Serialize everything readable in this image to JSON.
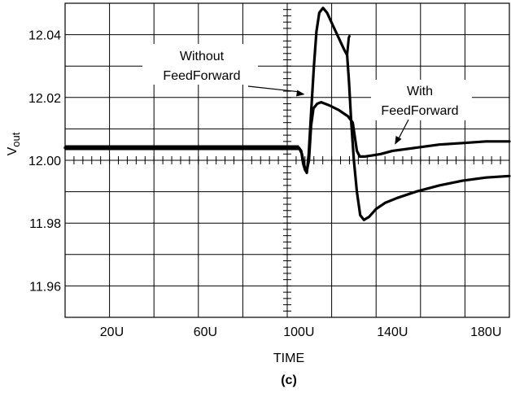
{
  "chart_data": {
    "type": "line",
    "xlabel": "TIME",
    "ylabel": "V",
    "ylabel_sub": "out",
    "caption": "(c)",
    "xlim": [
      0,
      190
    ],
    "ylim": [
      11.95,
      12.05
    ],
    "x_ticks": [
      {
        "value": 20,
        "label": "20U"
      },
      {
        "value": 60,
        "label": "60U"
      },
      {
        "value": 100,
        "label": "100U"
      },
      {
        "value": 140,
        "label": "140U"
      },
      {
        "value": 180,
        "label": "180U"
      }
    ],
    "y_ticks": [
      {
        "value": 11.96,
        "label": "11.96"
      },
      {
        "value": 11.98,
        "label": "11.98"
      },
      {
        "value": 12.0,
        "label": "12.00"
      },
      {
        "value": 12.02,
        "label": "12.02"
      },
      {
        "value": 12.04,
        "label": "12.04"
      }
    ],
    "grid": true,
    "color": "#000000",
    "series": [
      {
        "name": "Without FeedForward",
        "points": [
          [
            0,
            12.004
          ],
          [
            100,
            12.004
          ],
          [
            101,
            12.003
          ],
          [
            101.8,
            11.999
          ],
          [
            102.6,
            11.997
          ],
          [
            103.4,
            11.996
          ],
          [
            104.2,
            12.002
          ],
          [
            105.2,
            12.015
          ],
          [
            106.4,
            12.03
          ],
          [
            107.5,
            12.041
          ],
          [
            108.7,
            12.047
          ],
          [
            110.3,
            12.0485
          ],
          [
            112,
            12.047
          ],
          [
            114.5,
            12.043
          ],
          [
            117,
            12.039
          ],
          [
            119.5,
            12.035
          ],
          [
            120.6,
            12.0335
          ],
          [
            121.4,
            12.025
          ],
          [
            122.4,
            12.012
          ],
          [
            123.5,
            12.0
          ],
          [
            124.8,
            11.99
          ],
          [
            126.2,
            11.9825
          ],
          [
            127.8,
            11.981
          ],
          [
            130,
            11.982
          ],
          [
            133,
            11.9845
          ],
          [
            137,
            11.9865
          ],
          [
            142,
            11.988
          ],
          [
            150,
            11.99
          ],
          [
            160,
            11.992
          ],
          [
            170,
            11.9935
          ],
          [
            180,
            11.9945
          ],
          [
            190,
            11.995
          ]
        ]
      },
      {
        "name": "With FeedForward",
        "points": [
          [
            0,
            12.004
          ],
          [
            100,
            12.004
          ],
          [
            101.3,
            12.002
          ],
          [
            102.4,
            11.998
          ],
          [
            103.3,
            11.9965
          ],
          [
            104.3,
            12.0
          ],
          [
            105.2,
            12.011
          ],
          [
            106.2,
            12.0165
          ],
          [
            107.8,
            12.018
          ],
          [
            109.5,
            12.0185
          ],
          [
            113,
            12.0175
          ],
          [
            117,
            12.016
          ],
          [
            121,
            12.014
          ],
          [
            123,
            12.012
          ],
          [
            124.8,
            12.003
          ],
          [
            126,
            12.0012
          ],
          [
            128,
            12.0012
          ],
          [
            131,
            12.0015
          ],
          [
            135,
            12.002
          ],
          [
            140,
            12.003
          ],
          [
            150,
            12.004
          ],
          [
            160,
            12.005
          ],
          [
            170,
            12.0055
          ],
          [
            180,
            12.006
          ],
          [
            190,
            12.006
          ]
        ]
      },
      {
        "name": "Without FeedForward end spike",
        "points": [
          [
            120.6,
            12.0335
          ],
          [
            121.3,
            12.039
          ],
          [
            121.6,
            12.0395
          ]
        ]
      }
    ],
    "annotations": [
      {
        "name": "without",
        "lines": [
          "Without",
          "FeedForward"
        ],
        "arrow_to": [
          102.5,
          12.021
        ]
      },
      {
        "name": "with",
        "lines": [
          "With",
          "FeedForward"
        ],
        "arrow_to": [
          141,
          12.005
        ]
      }
    ]
  }
}
